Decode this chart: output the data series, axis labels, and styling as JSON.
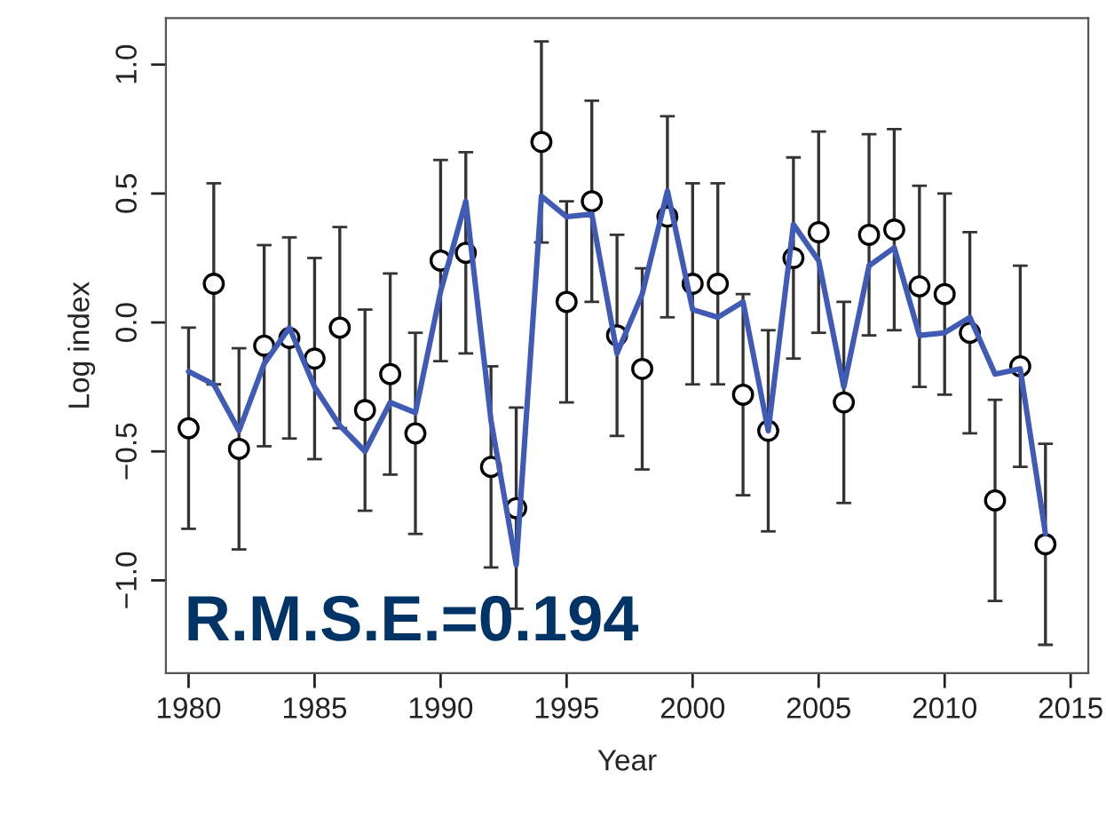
{
  "chart_data": {
    "type": "scatter",
    "xlabel": "Year",
    "ylabel": "Log index",
    "x": [
      1980,
      1981,
      1982,
      1983,
      1984,
      1985,
      1986,
      1987,
      1988,
      1989,
      1990,
      1991,
      1992,
      1993,
      1994,
      1995,
      1996,
      1997,
      1998,
      1999,
      2000,
      2001,
      2002,
      2003,
      2004,
      2005,
      2006,
      2007,
      2008,
      2009,
      2010,
      2011,
      2012,
      2013,
      2014
    ],
    "series": [
      {
        "color": "#000000",
        "marker": "circle",
        "values": [
          -0.41,
          0.15,
          -0.49,
          -0.09,
          -0.06,
          -0.14,
          -0.02,
          -0.34,
          -0.2,
          -0.43,
          0.24,
          0.27,
          -0.56,
          -0.72,
          0.7,
          0.08,
          0.47,
          -0.05,
          -0.18,
          0.41,
          0.15,
          0.15,
          -0.28,
          -0.42,
          0.25,
          0.35,
          -0.31,
          0.34,
          0.36,
          0.14,
          0.11,
          -0.04,
          -0.69,
          -0.17,
          -0.86
        ],
        "errors": [
          0.39,
          0.39,
          0.39,
          0.39,
          0.39,
          0.39,
          0.39,
          0.39,
          0.39,
          0.39,
          0.39,
          0.39,
          0.39,
          0.39,
          0.39,
          0.39,
          0.39,
          0.39,
          0.39,
          0.39,
          0.39,
          0.39,
          0.39,
          0.39,
          0.39,
          0.39,
          0.39,
          0.39,
          0.39,
          0.39,
          0.39,
          0.39,
          0.39,
          0.39,
          0.39
        ]
      },
      {
        "type": "line",
        "color": "#3f5bb5",
        "line_style": "solid",
        "values": [
          -0.19,
          -0.24,
          -0.42,
          -0.16,
          -0.02,
          -0.25,
          -0.4,
          -0.5,
          -0.31,
          -0.35,
          0.12,
          0.47,
          -0.38,
          -0.94,
          0.49,
          0.41,
          0.42,
          -0.12,
          0.11,
          0.51,
          0.05,
          0.02,
          0.08,
          -0.42,
          0.38,
          0.24,
          -0.25,
          0.22,
          0.29,
          -0.05,
          -0.04,
          0.02,
          -0.2,
          -0.18,
          -0.82
        ]
      }
    ],
    "xlim": [
      1979.1,
      2015.7
    ],
    "xticks": [
      1980,
      1985,
      1990,
      1995,
      2000,
      2005,
      2010,
      2015
    ],
    "ylim": [
      -1.36,
      1.18
    ],
    "yticks": [
      {
        "value": -1,
        "label": "−1.0"
      },
      {
        "value": -0.5,
        "label": "−0.5"
      },
      {
        "value": 0,
        "label": "0.0"
      },
      {
        "value": 0.5,
        "label": "0.5"
      },
      {
        "value": 1,
        "label": "1.0"
      }
    ],
    "grid": false,
    "annotations": [
      "R.M.S.E.=0.194"
    ]
  }
}
